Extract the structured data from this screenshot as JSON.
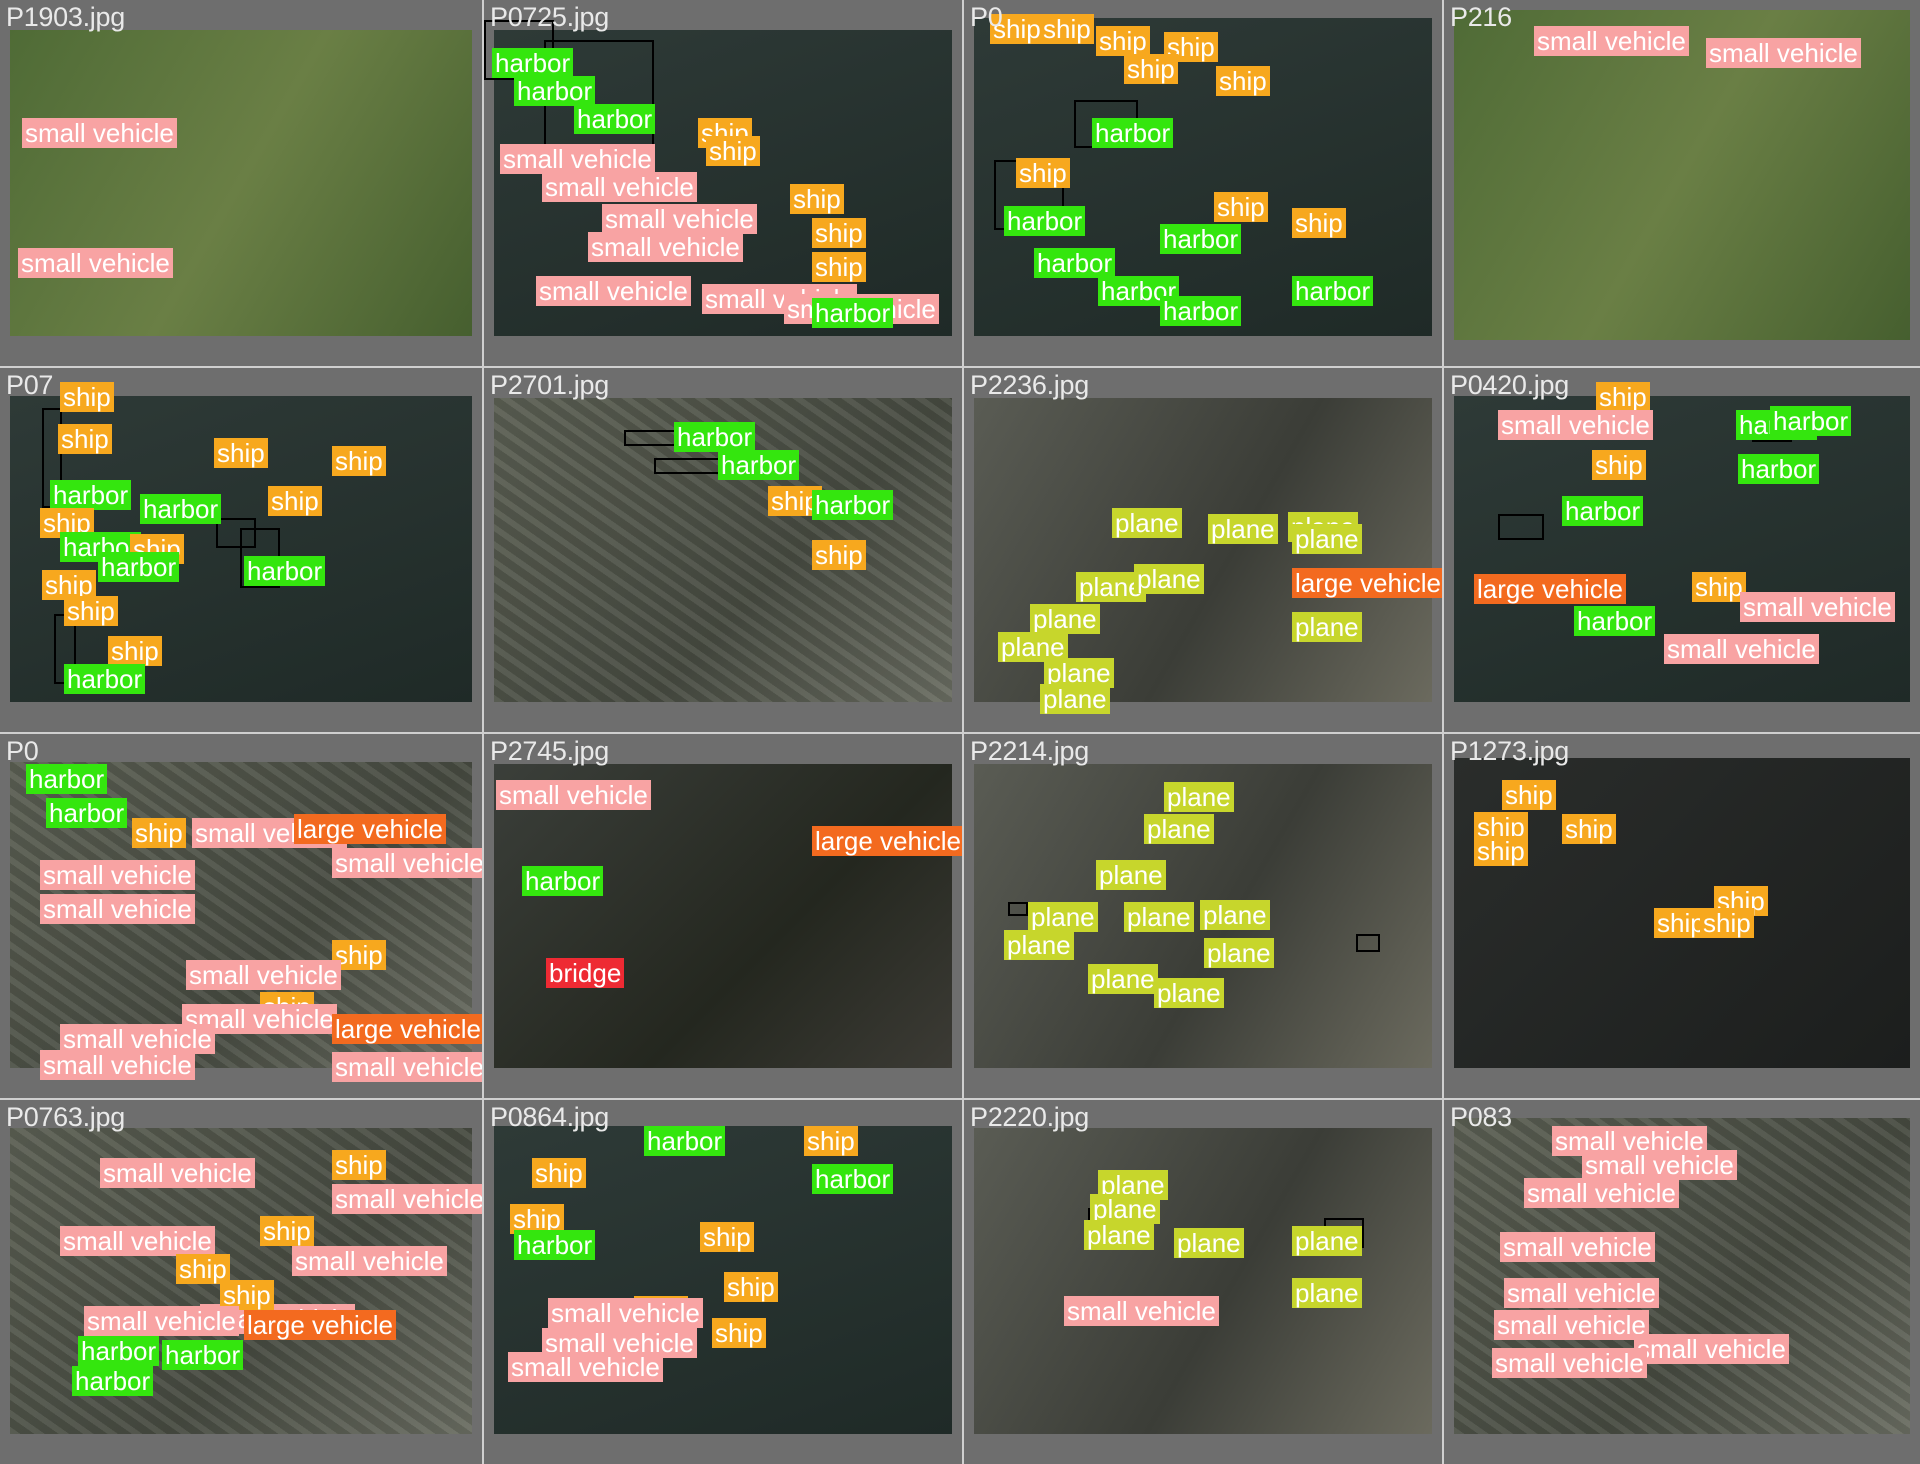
{
  "grid": {
    "columns": 4,
    "rows": 4,
    "tiles": [
      {
        "filename": "P1903.jpg",
        "scene": "field",
        "labels": [
          {
            "text": "small vehicle",
            "cls": "small_vehicle"
          },
          {
            "text": "small vehicle",
            "cls": "small_vehicle"
          }
        ]
      },
      {
        "filename": "P0725.jpg",
        "scene": "water",
        "labels": [
          {
            "text": "harbor",
            "cls": "harbor"
          },
          {
            "text": "harbor",
            "cls": "harbor"
          },
          {
            "text": "harbor",
            "cls": "harbor"
          },
          {
            "text": "ship",
            "cls": "ship"
          },
          {
            "text": "small vehicle",
            "cls": "small_vehicle"
          },
          {
            "text": "ship",
            "cls": "ship"
          },
          {
            "text": "small vehicle",
            "cls": "small_vehicle"
          },
          {
            "text": "ship",
            "cls": "ship"
          },
          {
            "text": "small vehicle",
            "cls": "small_vehicle"
          },
          {
            "text": "ship",
            "cls": "ship"
          },
          {
            "text": "small vehicle",
            "cls": "small_vehicle"
          },
          {
            "text": "ship",
            "cls": "ship"
          },
          {
            "text": "small vehicle",
            "cls": "small_vehicle"
          },
          {
            "text": "small vehicle",
            "cls": "small_vehicle"
          },
          {
            "text": "small vehicle",
            "cls": "small_vehicle"
          },
          {
            "text": "harbor",
            "cls": "harbor"
          }
        ]
      },
      {
        "filename": "P0",
        "scene": "water",
        "labels": [
          {
            "text": "ship",
            "cls": "ship"
          },
          {
            "text": "ship",
            "cls": "ship"
          },
          {
            "text": "ship",
            "cls": "ship"
          },
          {
            "text": "ship",
            "cls": "ship"
          },
          {
            "text": "ship",
            "cls": "ship"
          },
          {
            "text": "ship",
            "cls": "ship"
          },
          {
            "text": "harbor",
            "cls": "harbor"
          },
          {
            "text": "ship",
            "cls": "ship"
          },
          {
            "text": "harbor",
            "cls": "harbor"
          },
          {
            "text": "ship",
            "cls": "ship"
          },
          {
            "text": "harbor",
            "cls": "harbor"
          },
          {
            "text": "ship",
            "cls": "ship"
          },
          {
            "text": "harbor",
            "cls": "harbor"
          },
          {
            "text": "harbor",
            "cls": "harbor"
          },
          {
            "text": "harbor",
            "cls": "harbor"
          },
          {
            "text": "harbor",
            "cls": "harbor"
          }
        ]
      },
      {
        "filename": "P216",
        "scene": "field",
        "labels": [
          {
            "text": "small vehicle",
            "cls": "small_vehicle"
          },
          {
            "text": "small vehicle",
            "cls": "small_vehicle"
          }
        ]
      },
      {
        "filename": "P07",
        "scene": "water",
        "labels": [
          {
            "text": "ship",
            "cls": "ship"
          },
          {
            "text": "ship",
            "cls": "ship"
          },
          {
            "text": "ship",
            "cls": "ship"
          },
          {
            "text": "ship",
            "cls": "ship"
          },
          {
            "text": "harbor",
            "cls": "harbor"
          },
          {
            "text": "harbor",
            "cls": "harbor"
          },
          {
            "text": "ship",
            "cls": "ship"
          },
          {
            "text": "ship",
            "cls": "ship"
          },
          {
            "text": "harbor",
            "cls": "harbor"
          },
          {
            "text": "ship",
            "cls": "ship"
          },
          {
            "text": "harbor",
            "cls": "harbor"
          },
          {
            "text": "harbor",
            "cls": "harbor"
          },
          {
            "text": "ship",
            "cls": "ship"
          },
          {
            "text": "ship",
            "cls": "ship"
          },
          {
            "text": "ship",
            "cls": "ship"
          },
          {
            "text": "harbor",
            "cls": "harbor"
          }
        ]
      },
      {
        "filename": "P2701.jpg",
        "scene": "urban",
        "labels": [
          {
            "text": "harbor",
            "cls": "harbor"
          },
          {
            "text": "harbor",
            "cls": "harbor"
          },
          {
            "text": "ship",
            "cls": "ship"
          },
          {
            "text": "harbor",
            "cls": "harbor"
          },
          {
            "text": "ship",
            "cls": "ship"
          }
        ]
      },
      {
        "filename": "P2236.jpg",
        "scene": "runway",
        "labels": [
          {
            "text": "plane",
            "cls": "plane"
          },
          {
            "text": "plane",
            "cls": "plane"
          },
          {
            "text": "plane",
            "cls": "plane"
          },
          {
            "text": "plane",
            "cls": "plane"
          },
          {
            "text": "plane",
            "cls": "plane"
          },
          {
            "text": "plane",
            "cls": "plane"
          },
          {
            "text": "large vehicle",
            "cls": "large_vehicle"
          },
          {
            "text": "plane",
            "cls": "plane"
          },
          {
            "text": "plane",
            "cls": "plane"
          },
          {
            "text": "plane",
            "cls": "plane"
          },
          {
            "text": "plane",
            "cls": "plane"
          },
          {
            "text": "plane",
            "cls": "plane"
          }
        ]
      },
      {
        "filename": "P0420.jpg",
        "scene": "water",
        "labels": [
          {
            "text": "ship",
            "cls": "ship"
          },
          {
            "text": "small vehicle",
            "cls": "small_vehicle"
          },
          {
            "text": "harbor",
            "cls": "harbor"
          },
          {
            "text": "harbor",
            "cls": "harbor"
          },
          {
            "text": "ship",
            "cls": "ship"
          },
          {
            "text": "harbor",
            "cls": "harbor"
          },
          {
            "text": "harbor",
            "cls": "harbor"
          },
          {
            "text": "large vehicle",
            "cls": "large_vehicle"
          },
          {
            "text": "harbor",
            "cls": "harbor"
          },
          {
            "text": "ship",
            "cls": "ship"
          },
          {
            "text": "small vehicle",
            "cls": "small_vehicle"
          },
          {
            "text": "small vehicle",
            "cls": "small_vehicle"
          }
        ]
      },
      {
        "filename": "P0",
        "scene": "urban",
        "labels": [
          {
            "text": "harbor",
            "cls": "harbor"
          },
          {
            "text": "harbor",
            "cls": "harbor"
          },
          {
            "text": "ship",
            "cls": "ship"
          },
          {
            "text": "small vehicle",
            "cls": "small_vehicle"
          },
          {
            "text": "large vehicle",
            "cls": "large_vehicle"
          },
          {
            "text": "small vehicle",
            "cls": "small_vehicle"
          },
          {
            "text": "small vehicle",
            "cls": "small_vehicle"
          },
          {
            "text": "small vehicle",
            "cls": "small_vehicle"
          },
          {
            "text": "ship",
            "cls": "ship"
          },
          {
            "text": "small vehicle",
            "cls": "small_vehicle"
          },
          {
            "text": "ship",
            "cls": "ship"
          },
          {
            "text": "small vehicle",
            "cls": "small_vehicle"
          },
          {
            "text": "small vehicle",
            "cls": "small_vehicle"
          },
          {
            "text": "large vehicle",
            "cls": "large_vehicle"
          },
          {
            "text": "small vehicle",
            "cls": "small_vehicle"
          },
          {
            "text": "small vehicle",
            "cls": "small_vehicle"
          }
        ]
      },
      {
        "filename": "P2745.jpg",
        "scene": "hills",
        "labels": [
          {
            "text": "small vehicle",
            "cls": "small_vehicle"
          },
          {
            "text": "large vehicle",
            "cls": "large_vehicle"
          },
          {
            "text": "harbor",
            "cls": "harbor"
          },
          {
            "text": "bridge",
            "cls": "bridge"
          }
        ]
      },
      {
        "filename": "P2214.jpg",
        "scene": "runway",
        "labels": [
          {
            "text": "plane",
            "cls": "plane"
          },
          {
            "text": "plane",
            "cls": "plane"
          },
          {
            "text": "plane",
            "cls": "plane"
          },
          {
            "text": "plane",
            "cls": "plane"
          },
          {
            "text": "plane",
            "cls": "plane"
          },
          {
            "text": "plane",
            "cls": "plane"
          },
          {
            "text": "plane",
            "cls": "plane"
          },
          {
            "text": "plane",
            "cls": "plane"
          },
          {
            "text": "plane",
            "cls": "plane"
          },
          {
            "text": "plane",
            "cls": "plane"
          }
        ]
      },
      {
        "filename": "P1273.jpg",
        "scene": "dark",
        "labels": [
          {
            "text": "ship",
            "cls": "ship"
          },
          {
            "text": "ship",
            "cls": "ship"
          },
          {
            "text": "ship",
            "cls": "ship"
          },
          {
            "text": "ship",
            "cls": "ship"
          },
          {
            "text": "ship",
            "cls": "ship"
          },
          {
            "text": "ship",
            "cls": "ship"
          },
          {
            "text": "ship",
            "cls": "ship"
          }
        ]
      },
      {
        "filename": "P0763.jpg",
        "scene": "urban",
        "labels": [
          {
            "text": "ship",
            "cls": "ship"
          },
          {
            "text": "small vehicle",
            "cls": "small_vehicle"
          },
          {
            "text": "small vehicle",
            "cls": "small_vehicle"
          },
          {
            "text": "ship",
            "cls": "ship"
          },
          {
            "text": "small vehicle",
            "cls": "small_vehicle"
          },
          {
            "text": "small vehicle",
            "cls": "small_vehicle"
          },
          {
            "text": "ship",
            "cls": "ship"
          },
          {
            "text": "small vehicle",
            "cls": "small_vehicle"
          },
          {
            "text": "ship",
            "cls": "ship"
          },
          {
            "text": "small vehicle",
            "cls": "small_vehicle"
          },
          {
            "text": "harbor",
            "cls": "harbor"
          },
          {
            "text": "large vehicle",
            "cls": "large_vehicle"
          },
          {
            "text": "harbor",
            "cls": "harbor"
          },
          {
            "text": "harbor",
            "cls": "harbor"
          }
        ]
      },
      {
        "filename": "P0864.jpg",
        "scene": "water",
        "labels": [
          {
            "text": "harbor",
            "cls": "harbor"
          },
          {
            "text": "ship",
            "cls": "ship"
          },
          {
            "text": "ship",
            "cls": "ship"
          },
          {
            "text": "harbor",
            "cls": "harbor"
          },
          {
            "text": "ship",
            "cls": "ship"
          },
          {
            "text": "harbor",
            "cls": "harbor"
          },
          {
            "text": "ship",
            "cls": "ship"
          },
          {
            "text": "ship",
            "cls": "ship"
          },
          {
            "text": "ship",
            "cls": "ship"
          },
          {
            "text": "small vehicle",
            "cls": "small_vehicle"
          },
          {
            "text": "ship",
            "cls": "ship"
          },
          {
            "text": "small vehicle",
            "cls": "small_vehicle"
          },
          {
            "text": "small vehicle",
            "cls": "small_vehicle"
          }
        ]
      },
      {
        "filename": "P2220.jpg",
        "scene": "runway",
        "labels": [
          {
            "text": "plane",
            "cls": "plane"
          },
          {
            "text": "plane",
            "cls": "plane"
          },
          {
            "text": "plane",
            "cls": "plane"
          },
          {
            "text": "plane",
            "cls": "plane"
          },
          {
            "text": "plane",
            "cls": "plane"
          },
          {
            "text": "plane",
            "cls": "plane"
          },
          {
            "text": "small vehicle",
            "cls": "small_vehicle"
          }
        ]
      },
      {
        "filename": "P083",
        "scene": "urban",
        "labels": [
          {
            "text": "small vehicle",
            "cls": "small_vehicle"
          },
          {
            "text": "small vehicle",
            "cls": "small_vehicle"
          },
          {
            "text": "small vehicle",
            "cls": "small_vehicle"
          },
          {
            "text": "small vehicle",
            "cls": "small_vehicle"
          },
          {
            "text": "small vehicle",
            "cls": "small_vehicle"
          },
          {
            "text": "small vehicle",
            "cls": "small_vehicle"
          },
          {
            "text": "small vehicle",
            "cls": "small_vehicle"
          },
          {
            "text": "small vehicle",
            "cls": "small_vehicle"
          }
        ]
      }
    ]
  },
  "colors": {
    "small_vehicle": "#f8a3a3",
    "ship": "#f7a81e",
    "harbor": "#34e60e",
    "plane": "#c7d62c",
    "large_vehicle": "#f36a1f",
    "bridge": "#ee2a33"
  }
}
